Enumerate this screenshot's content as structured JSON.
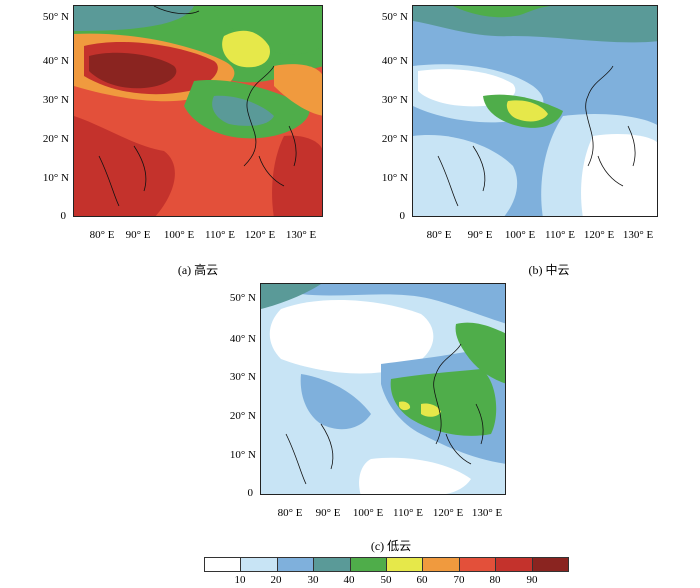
{
  "panels": [
    {
      "id": "a",
      "caption": "(a) 高云",
      "level": "high"
    },
    {
      "id": "b",
      "caption": "(b) 中云",
      "level": "mid"
    },
    {
      "id": "c",
      "caption": "(c) 低云",
      "level": "low"
    }
  ],
  "axes": {
    "lat_labels": [
      "50° N",
      "40° N",
      "30° N",
      "20° N",
      "10° N",
      "0"
    ],
    "lon_labels": [
      "80° E",
      "90° E",
      "100° E",
      "110° E",
      "120° E",
      "130° E"
    ]
  },
  "colorbar": {
    "labels": [
      "10",
      "20",
      "30",
      "40",
      "50",
      "60",
      "70",
      "80",
      "90"
    ],
    "colors": [
      "#ffffff",
      "#c8e4f5",
      "#7fb0dc",
      "#5a9a98",
      "#4fad4a",
      "#e6e84a",
      "#f09a3e",
      "#e3503a",
      "#c4322c",
      "#8a2420"
    ]
  }
}
